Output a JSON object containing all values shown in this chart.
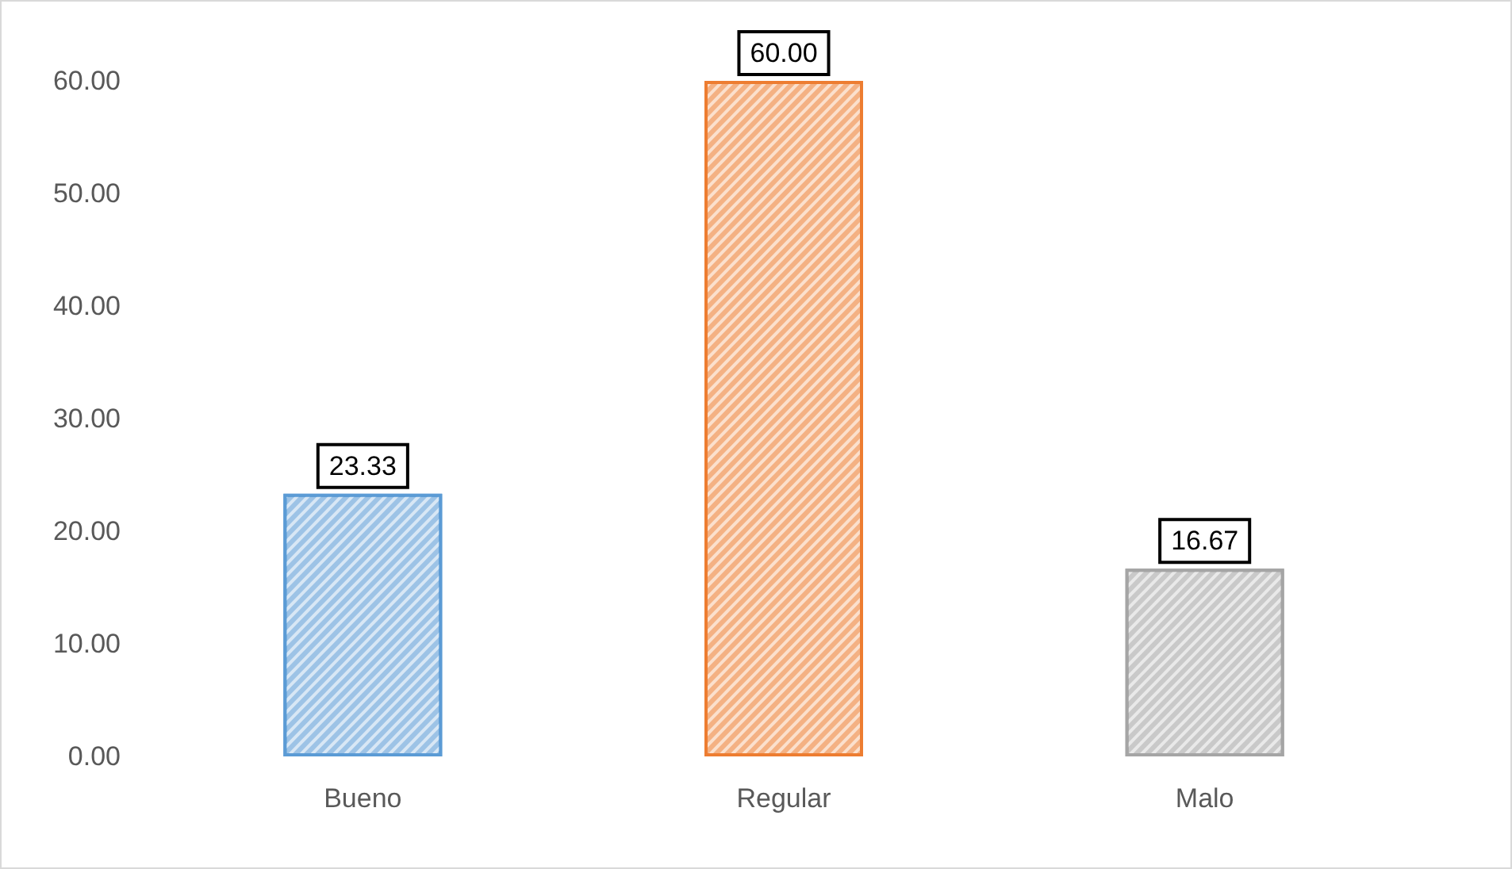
{
  "chart_data": {
    "type": "bar",
    "categories": [
      "Bueno",
      "Regular",
      "Malo"
    ],
    "values": [
      23.33,
      60,
      16.67
    ],
    "colors": [
      "#5b9bd5",
      "#ed7d31",
      "#a5a5a5"
    ],
    "value_labels": [
      "23.33",
      "60.00",
      "16.67"
    ],
    "ylim": [
      0,
      60
    ],
    "yticks": [
      {
        "value": 0,
        "label": "0.00"
      },
      {
        "value": 10,
        "label": "10.00"
      },
      {
        "value": 20,
        "label": "20.00"
      },
      {
        "value": 30,
        "label": "30.00"
      },
      {
        "value": 40,
        "label": "40.00"
      },
      {
        "value": 50,
        "label": "50.00"
      },
      {
        "value": 60,
        "label": "60.00"
      }
    ],
    "grid": false
  }
}
